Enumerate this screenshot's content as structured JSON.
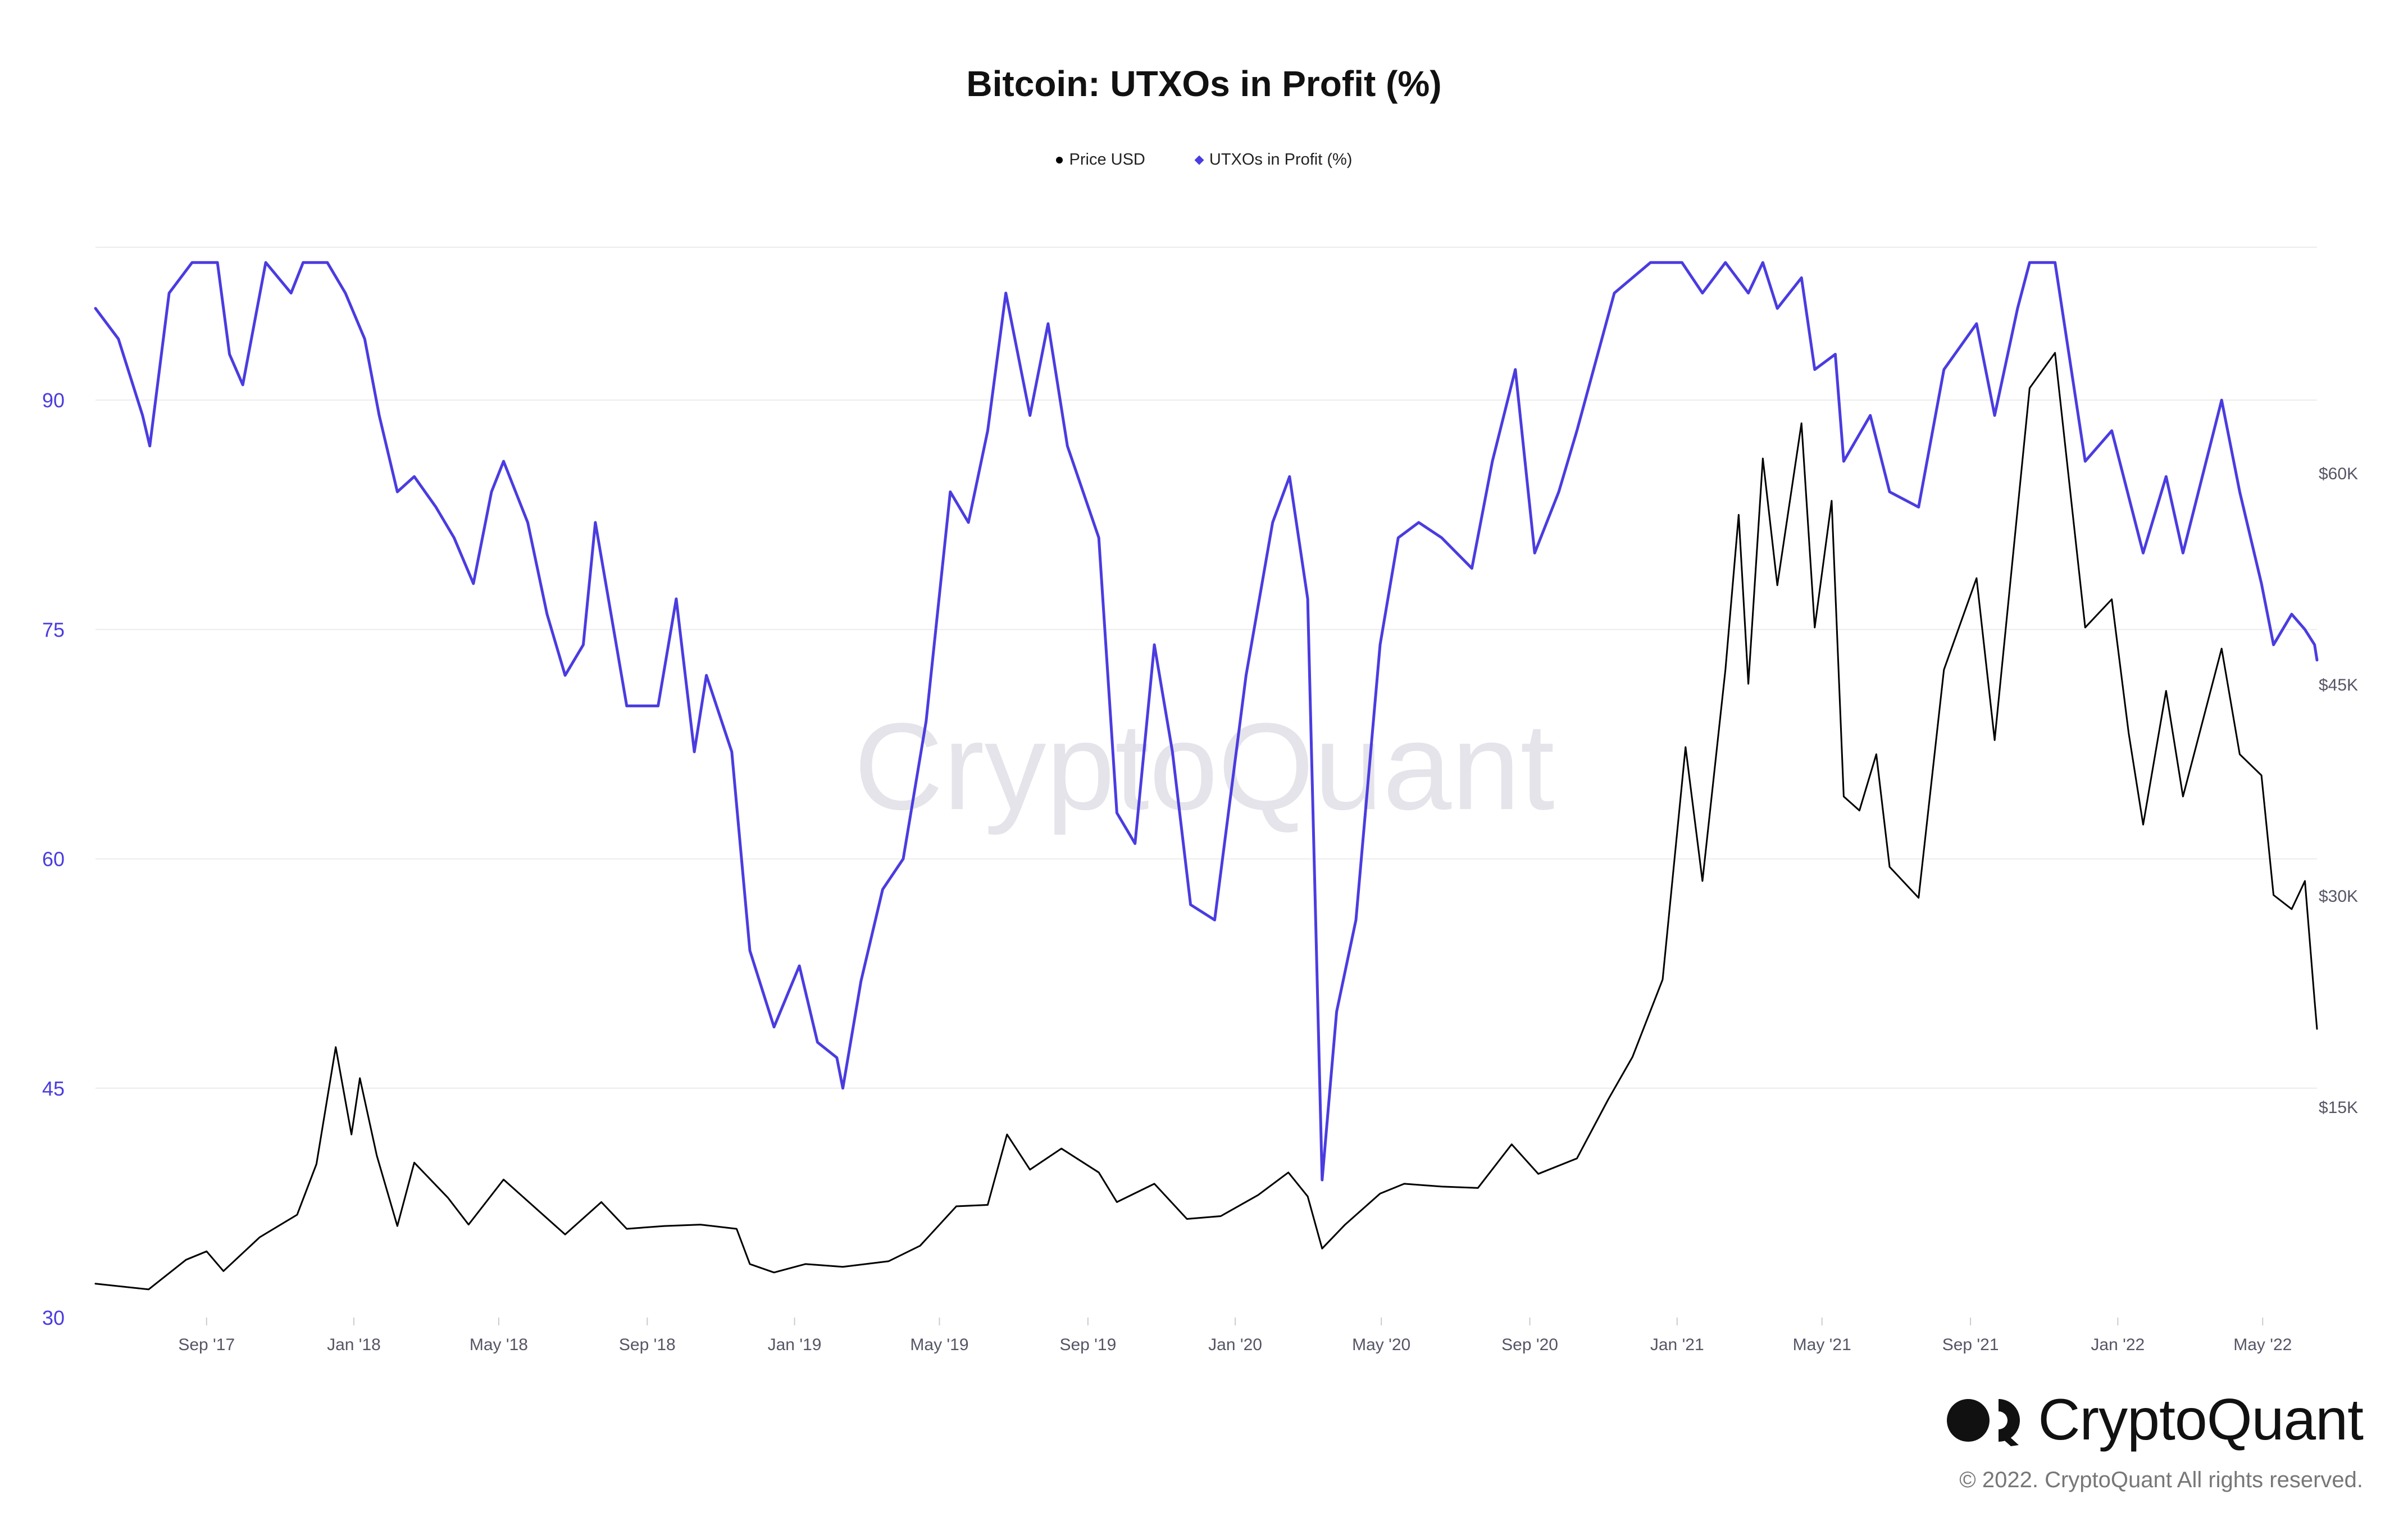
{
  "chart_data": {
    "type": "line",
    "title": "Bitcoin: UTXOs in Profit (%)",
    "legend_placement": "top-center",
    "grid": true,
    "watermark": "CryptoQuant",
    "x_ticks": [
      "Sep '17",
      "Jan '18",
      "May '18",
      "Sep '18",
      "Jan '19",
      "May '19",
      "Sep '19",
      "Jan '20",
      "May '20",
      "Sep '20",
      "Jan '21",
      "May '21",
      "Sep '21",
      "Jan '22",
      "May '22"
    ],
    "x_range": [
      "2017-06-01",
      "2022-06-15"
    ],
    "y_left": {
      "ticks": [
        "30",
        "45",
        "60",
        "75",
        "90"
      ],
      "range": [
        30,
        100
      ]
    },
    "y_right": {
      "ticks": [
        "$15K",
        "$30K",
        "$45K",
        "$60K"
      ],
      "range": [
        0,
        76000
      ]
    },
    "series": [
      {
        "name": "Price USD",
        "color": "#000000",
        "axis": "right",
        "legend_marker": "dot",
        "points": [
          [
            "2017-06-01",
            2400
          ],
          [
            "2017-07-15",
            2000
          ],
          [
            "2017-08-15",
            4100
          ],
          [
            "2017-09-01",
            4700
          ],
          [
            "2017-09-15",
            3300
          ],
          [
            "2017-10-15",
            5700
          ],
          [
            "2017-11-15",
            7300
          ],
          [
            "2017-12-01",
            10900
          ],
          [
            "2017-12-17",
            19200
          ],
          [
            "2017-12-30",
            13000
          ],
          [
            "2018-01-06",
            17000
          ],
          [
            "2018-01-20",
            11500
          ],
          [
            "2018-02-06",
            6500
          ],
          [
            "2018-02-20",
            11000
          ],
          [
            "2018-03-20",
            8500
          ],
          [
            "2018-04-06",
            6600
          ],
          [
            "2018-05-05",
            9800
          ],
          [
            "2018-06-25",
            5900
          ],
          [
            "2018-07-25",
            8200
          ],
          [
            "2018-08-15",
            6300
          ],
          [
            "2018-09-15",
            6500
          ],
          [
            "2018-10-15",
            6600
          ],
          [
            "2018-11-14",
            6300
          ],
          [
            "2018-11-25",
            3800
          ],
          [
            "2018-12-15",
            3200
          ],
          [
            "2019-01-10",
            3800
          ],
          [
            "2019-02-10",
            3600
          ],
          [
            "2019-03-20",
            4000
          ],
          [
            "2019-04-15",
            5100
          ],
          [
            "2019-05-15",
            7900
          ],
          [
            "2019-06-10",
            8000
          ],
          [
            "2019-06-26",
            13000
          ],
          [
            "2019-07-15",
            10500
          ],
          [
            "2019-08-10",
            12000
          ],
          [
            "2019-09-10",
            10300
          ],
          [
            "2019-09-25",
            8200
          ],
          [
            "2019-10-26",
            9500
          ],
          [
            "2019-11-22",
            7000
          ],
          [
            "2019-12-20",
            7200
          ],
          [
            "2020-01-20",
            8700
          ],
          [
            "2020-02-14",
            10300
          ],
          [
            "2020-03-01",
            8600
          ],
          [
            "2020-03-13",
            4900
          ],
          [
            "2020-04-01",
            6600
          ],
          [
            "2020-04-30",
            8800
          ],
          [
            "2020-05-20",
            9500
          ],
          [
            "2020-06-20",
            9300
          ],
          [
            "2020-07-20",
            9200
          ],
          [
            "2020-08-17",
            12300
          ],
          [
            "2020-09-08",
            10200
          ],
          [
            "2020-10-10",
            11300
          ],
          [
            "2020-11-05",
            15500
          ],
          [
            "2020-11-25",
            18500
          ],
          [
            "2020-12-20",
            24000
          ],
          [
            "2021-01-08",
            40500
          ],
          [
            "2021-01-22",
            31000
          ],
          [
            "2021-02-10",
            46000
          ],
          [
            "2021-02-21",
            57000
          ],
          [
            "2021-03-01",
            45000
          ],
          [
            "2021-03-13",
            61000
          ],
          [
            "2021-03-25",
            52000
          ],
          [
            "2021-04-14",
            63500
          ],
          [
            "2021-04-25",
            49000
          ],
          [
            "2021-05-09",
            58000
          ],
          [
            "2021-05-19",
            37000
          ],
          [
            "2021-06-01",
            36000
          ],
          [
            "2021-06-15",
            40000
          ],
          [
            "2021-06-26",
            32000
          ],
          [
            "2021-07-20",
            29800
          ],
          [
            "2021-08-10",
            46000
          ],
          [
            "2021-09-06",
            52500
          ],
          [
            "2021-09-21",
            41000
          ],
          [
            "2021-10-20",
            66000
          ],
          [
            "2021-11-10",
            68500
          ],
          [
            "2021-12-05",
            49000
          ],
          [
            "2021-12-27",
            51000
          ],
          [
            "2022-01-10",
            41500
          ],
          [
            "2022-01-22",
            35000
          ],
          [
            "2022-02-10",
            44500
          ],
          [
            "2022-02-24",
            37000
          ],
          [
            "2022-03-28",
            47500
          ],
          [
            "2022-04-12",
            40000
          ],
          [
            "2022-04-30",
            38500
          ],
          [
            "2022-05-10",
            30000
          ],
          [
            "2022-05-25",
            29000
          ],
          [
            "2022-06-05",
            31000
          ],
          [
            "2022-06-13",
            22500
          ],
          [
            "2022-06-15",
            20500
          ]
        ]
      },
      {
        "name": "UTXOs in Profit (%)",
        "color": "#4a3ce0",
        "axis": "left",
        "legend_marker": "diamond",
        "points": [
          [
            "2017-06-01",
            96
          ],
          [
            "2017-06-20",
            94
          ],
          [
            "2017-07-10",
            89
          ],
          [
            "2017-07-16",
            87
          ],
          [
            "2017-08-01",
            97
          ],
          [
            "2017-08-20",
            99
          ],
          [
            "2017-09-10",
            99
          ],
          [
            "2017-09-20",
            93
          ],
          [
            "2017-10-01",
            91
          ],
          [
            "2017-10-20",
            99
          ],
          [
            "2017-11-10",
            97
          ],
          [
            "2017-11-20",
            99
          ],
          [
            "2017-12-10",
            99
          ],
          [
            "2017-12-25",
            97
          ],
          [
            "2018-01-10",
            94
          ],
          [
            "2018-01-22",
            89
          ],
          [
            "2018-02-06",
            84
          ],
          [
            "2018-02-20",
            85
          ],
          [
            "2018-03-10",
            83
          ],
          [
            "2018-03-25",
            81
          ],
          [
            "2018-04-10",
            78
          ],
          [
            "2018-04-25",
            84
          ],
          [
            "2018-05-05",
            86
          ],
          [
            "2018-05-25",
            82
          ],
          [
            "2018-06-10",
            76
          ],
          [
            "2018-06-25",
            72
          ],
          [
            "2018-07-10",
            74
          ],
          [
            "2018-07-20",
            82
          ],
          [
            "2018-08-15",
            70
          ],
          [
            "2018-09-10",
            70
          ],
          [
            "2018-09-25",
            77
          ],
          [
            "2018-10-10",
            67
          ],
          [
            "2018-10-20",
            72
          ],
          [
            "2018-11-10",
            67
          ],
          [
            "2018-11-25",
            54
          ],
          [
            "2018-12-15",
            49
          ],
          [
            "2019-01-05",
            53
          ],
          [
            "2019-01-20",
            48
          ],
          [
            "2019-02-05",
            47
          ],
          [
            "2019-02-10",
            45
          ],
          [
            "2019-02-25",
            52
          ],
          [
            "2019-03-15",
            58
          ],
          [
            "2019-04-01",
            60
          ],
          [
            "2019-04-20",
            69
          ],
          [
            "2019-05-10",
            84
          ],
          [
            "2019-05-25",
            82
          ],
          [
            "2019-06-10",
            88
          ],
          [
            "2019-06-25",
            97
          ],
          [
            "2019-07-15",
            89
          ],
          [
            "2019-07-30",
            95
          ],
          [
            "2019-08-15",
            87
          ],
          [
            "2019-09-10",
            81
          ],
          [
            "2019-09-25",
            63
          ],
          [
            "2019-10-10",
            61
          ],
          [
            "2019-10-26",
            74
          ],
          [
            "2019-11-10",
            67
          ],
          [
            "2019-11-25",
            57
          ],
          [
            "2019-12-15",
            56
          ],
          [
            "2020-01-10",
            72
          ],
          [
            "2020-02-01",
            82
          ],
          [
            "2020-02-15",
            85
          ],
          [
            "2020-03-01",
            77
          ],
          [
            "2020-03-13",
            39
          ],
          [
            "2020-03-25",
            50
          ],
          [
            "2020-04-10",
            56
          ],
          [
            "2020-04-30",
            74
          ],
          [
            "2020-05-15",
            81
          ],
          [
            "2020-06-01",
            82
          ],
          [
            "2020-06-20",
            81
          ],
          [
            "2020-07-15",
            79
          ],
          [
            "2020-08-01",
            86
          ],
          [
            "2020-08-20",
            92
          ],
          [
            "2020-09-05",
            80
          ],
          [
            "2020-09-25",
            84
          ],
          [
            "2020-10-10",
            88
          ],
          [
            "2020-11-10",
            97
          ],
          [
            "2020-12-10",
            99
          ],
          [
            "2021-01-05",
            99
          ],
          [
            "2021-01-22",
            97
          ],
          [
            "2021-02-10",
            99
          ],
          [
            "2021-03-01",
            97
          ],
          [
            "2021-03-13",
            99
          ],
          [
            "2021-03-25",
            96
          ],
          [
            "2021-04-14",
            98
          ],
          [
            "2021-04-25",
            92
          ],
          [
            "2021-05-12",
            93
          ],
          [
            "2021-05-19",
            86
          ],
          [
            "2021-06-10",
            89
          ],
          [
            "2021-06-26",
            84
          ],
          [
            "2021-07-20",
            83
          ],
          [
            "2021-08-10",
            92
          ],
          [
            "2021-09-06",
            95
          ],
          [
            "2021-09-21",
            89
          ],
          [
            "2021-10-10",
            96
          ],
          [
            "2021-10-20",
            99
          ],
          [
            "2021-11-10",
            99
          ],
          [
            "2021-12-05",
            86
          ],
          [
            "2021-12-27",
            88
          ],
          [
            "2022-01-22",
            80
          ],
          [
            "2022-02-10",
            85
          ],
          [
            "2022-02-24",
            80
          ],
          [
            "2022-03-28",
            90
          ],
          [
            "2022-04-12",
            84
          ],
          [
            "2022-04-30",
            78
          ],
          [
            "2022-05-10",
            74
          ],
          [
            "2022-05-25",
            76
          ],
          [
            "2022-06-05",
            75
          ],
          [
            "2022-06-13",
            74
          ],
          [
            "2022-06-15",
            73
          ]
        ]
      }
    ]
  },
  "branding": {
    "name": "CryptoQuant",
    "copyright": "© 2022. CryptoQuant All rights reserved."
  }
}
